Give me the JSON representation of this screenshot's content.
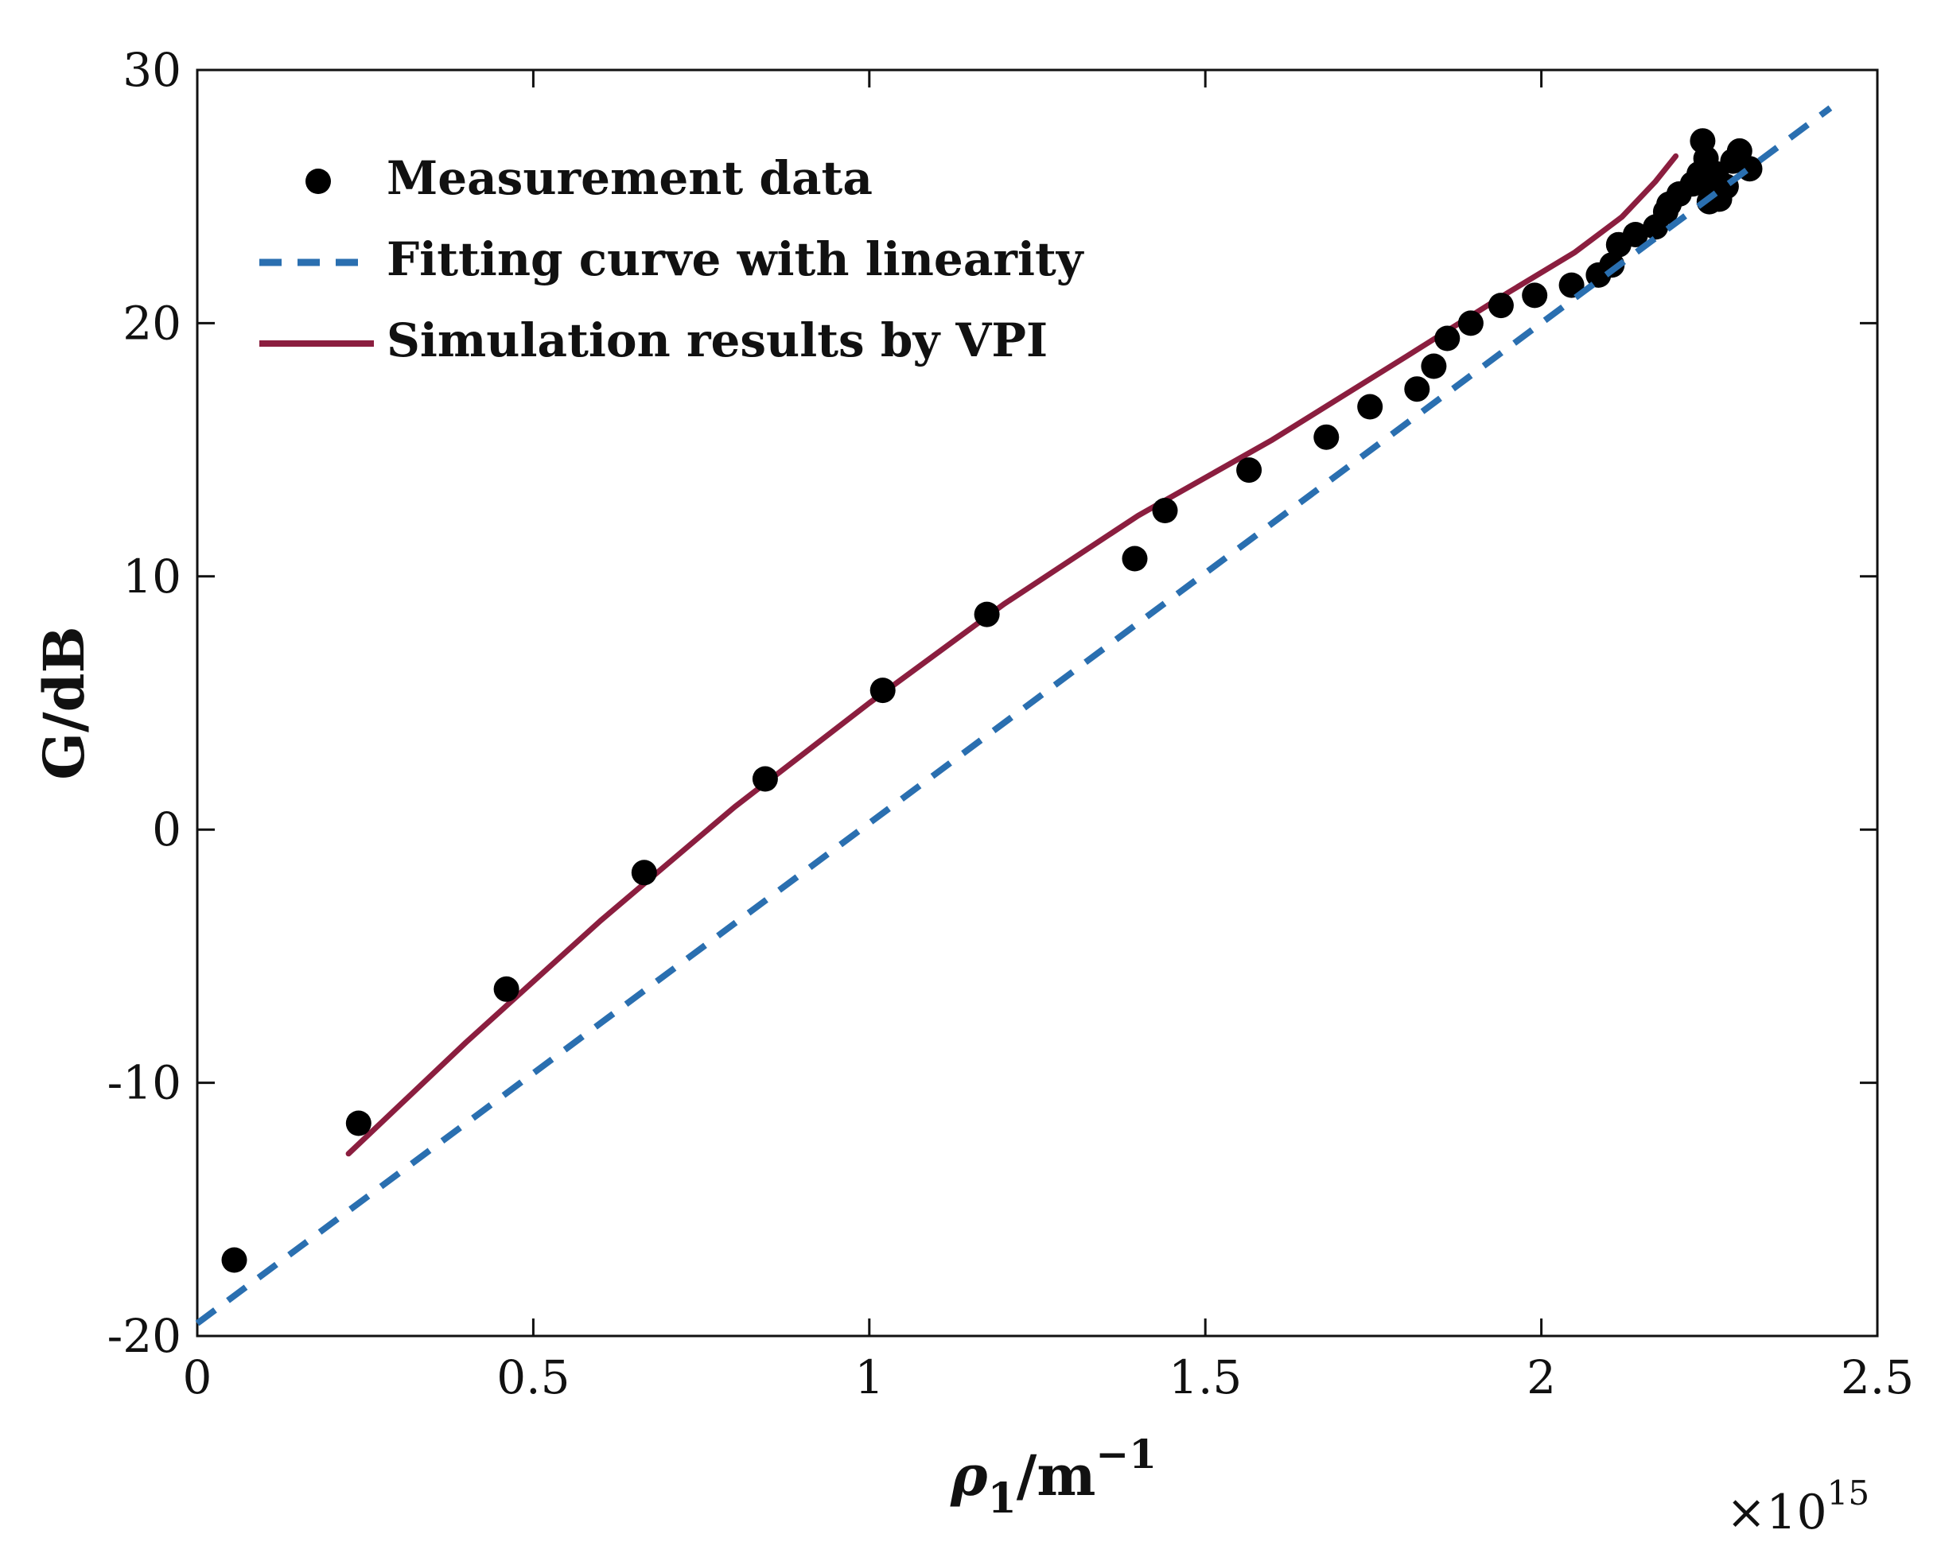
{
  "chart_data": {
    "type": "scatter",
    "title": "",
    "xlabel": {
      "symbol": "ρ",
      "subscript": "1",
      "unit": "/m",
      "superscript": "−1"
    },
    "ylabel": "G/dB",
    "x_multiplier_label": {
      "base": "×10",
      "exponent": "15"
    },
    "xlim": [
      0,
      2.5
    ],
    "ylim": [
      -20,
      30
    ],
    "xticks": [
      0,
      0.5,
      1,
      1.5,
      2,
      2.5
    ],
    "xtick_labels": [
      "0",
      "0.5",
      "1",
      "1.5",
      "2",
      "2.5"
    ],
    "yticks": [
      -20,
      -10,
      0,
      10,
      20,
      30
    ],
    "ytick_labels": [
      "-20",
      "-10",
      "0",
      "10",
      "20",
      "30"
    ],
    "grid": false,
    "legend_position": "top-left",
    "series": [
      {
        "name": "Measurement data",
        "kind": "scatter",
        "color": "#000000",
        "x": [
          0.055,
          0.24,
          0.46,
          0.665,
          0.845,
          1.02,
          1.175,
          1.395,
          1.44,
          1.565,
          1.68,
          1.745,
          1.815,
          1.84,
          1.86,
          1.895,
          1.94,
          1.99,
          2.045,
          2.085,
          2.105,
          2.115,
          2.14,
          2.17,
          2.185,
          2.19,
          2.205,
          2.225,
          2.235,
          2.24,
          2.245,
          2.25,
          2.255,
          2.26,
          2.265,
          2.275,
          2.285,
          2.295,
          2.31
        ],
        "y": [
          -17.0,
          -11.6,
          -6.3,
          -1.7,
          2.0,
          5.5,
          8.5,
          10.7,
          12.6,
          14.2,
          15.5,
          16.7,
          17.4,
          18.3,
          19.4,
          20.0,
          20.7,
          21.1,
          21.5,
          21.9,
          22.3,
          23.1,
          23.5,
          23.8,
          24.4,
          24.7,
          25.1,
          25.5,
          25.9,
          27.2,
          26.5,
          24.8,
          25.3,
          25.9,
          24.9,
          25.4,
          26.4,
          26.8,
          26.1
        ]
      },
      {
        "name": "Fitting curve with linearity",
        "kind": "line",
        "style": "dashed",
        "color": "#2a6fb0",
        "x": [
          0,
          2.43
        ],
        "y": [
          -19.5,
          28.5
        ]
      },
      {
        "name": "Simulation results by VPI",
        "kind": "line",
        "style": "solid",
        "color": "#8b1e3f",
        "x": [
          0.225,
          0.4,
          0.6,
          0.8,
          1.0,
          1.2,
          1.4,
          1.6,
          1.8,
          1.95,
          2.05,
          2.12,
          2.17,
          2.2
        ],
        "y": [
          -12.8,
          -8.4,
          -3.6,
          0.9,
          5.0,
          8.9,
          12.4,
          15.4,
          18.7,
          21.2,
          22.8,
          24.2,
          25.6,
          26.6
        ]
      }
    ]
  }
}
